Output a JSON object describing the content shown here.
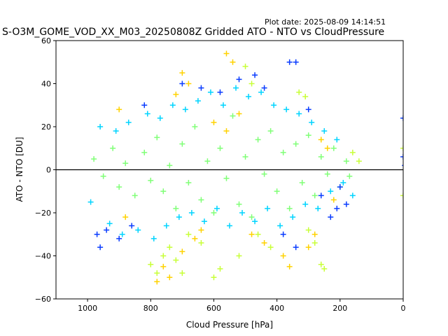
{
  "chart_data": {
    "type": "scatter",
    "title": "S-O3M_GOME_VOD_XX_M03_20250808Z Gridded ATO - NTO vs CloudPressure",
    "subtitle": "Plot date: 2025-08-09 14:14:51",
    "xlabel": "Cloud Pressure [hPa]",
    "ylabel": "ATO - NTO [DU]",
    "xlim": [
      1100,
      0
    ],
    "ylim": [
      -60,
      60
    ],
    "x_ticks": [
      1000,
      800,
      600,
      400,
      200,
      0
    ],
    "y_ticks": [
      60,
      40,
      20,
      0,
      -20,
      -40,
      -60
    ],
    "x_tick_labels": [
      "1000",
      "800",
      "600",
      "400",
      "200",
      "0"
    ],
    "y_tick_labels": [
      "60",
      "40",
      "20",
      "0",
      "−20",
      "−40",
      "−60"
    ],
    "reference_line_y": 0,
    "marker": "plus",
    "colormap": "jet",
    "colors": {
      "line": "#000000",
      "axes": "#000000",
      "background": "#ffffff"
    },
    "series": [
      {
        "color": "#80ff77",
        "values": [
          [
            980,
            5
          ],
          [
            950,
            -3
          ],
          [
            920,
            10
          ],
          [
            900,
            -8
          ],
          [
            880,
            3
          ],
          [
            850,
            -12
          ],
          [
            820,
            8
          ],
          [
            800,
            -5
          ],
          [
            780,
            15
          ],
          [
            760,
            -10
          ],
          [
            740,
            2
          ],
          [
            720,
            -18
          ],
          [
            700,
            12
          ],
          [
            680,
            -6
          ],
          [
            660,
            20
          ],
          [
            640,
            -14
          ],
          [
            620,
            4
          ],
          [
            600,
            -20
          ],
          [
            580,
            10
          ],
          [
            560,
            -4
          ],
          [
            540,
            25
          ],
          [
            520,
            -16
          ],
          [
            500,
            6
          ],
          [
            480,
            -22
          ],
          [
            460,
            14
          ],
          [
            440,
            -2
          ],
          [
            420,
            18
          ],
          [
            400,
            -10
          ],
          [
            380,
            8
          ],
          [
            360,
            -18
          ],
          [
            340,
            12
          ],
          [
            320,
            -6
          ],
          [
            300,
            16
          ],
          [
            280,
            -12
          ],
          [
            260,
            6
          ],
          [
            240,
            -2
          ],
          [
            220,
            10
          ],
          [
            200,
            -8
          ],
          [
            180,
            4
          ],
          [
            170,
            -3
          ]
        ]
      },
      {
        "color": "#00d4ff",
        "values": [
          [
            990,
            -15
          ],
          [
            960,
            20
          ],
          [
            930,
            -25
          ],
          [
            910,
            18
          ],
          [
            890,
            -30
          ],
          [
            870,
            22
          ],
          [
            840,
            -28
          ],
          [
            810,
            26
          ],
          [
            790,
            -32
          ],
          [
            770,
            24
          ],
          [
            750,
            -26
          ],
          [
            730,
            30
          ],
          [
            710,
            -22
          ],
          [
            690,
            28
          ],
          [
            670,
            -20
          ],
          [
            650,
            32
          ],
          [
            630,
            -24
          ],
          [
            610,
            36
          ],
          [
            590,
            -18
          ],
          [
            570,
            30
          ],
          [
            550,
            -26
          ],
          [
            530,
            38
          ],
          [
            510,
            -20
          ],
          [
            490,
            34
          ],
          [
            470,
            -24
          ],
          [
            450,
            36
          ],
          [
            430,
            -18
          ],
          [
            410,
            30
          ],
          [
            390,
            -26
          ],
          [
            370,
            28
          ],
          [
            350,
            -22
          ],
          [
            330,
            26
          ],
          [
            310,
            -16
          ],
          [
            290,
            22
          ],
          [
            270,
            -18
          ],
          [
            250,
            18
          ],
          [
            230,
            -10
          ],
          [
            210,
            14
          ],
          [
            190,
            -6
          ],
          [
            160,
            -12
          ]
        ]
      },
      {
        "color": "#ffd200",
        "values": [
          [
            760,
            -45
          ],
          [
            740,
            -50
          ],
          [
            780,
            -52
          ],
          [
            700,
            -38
          ],
          [
            720,
            35
          ],
          [
            700,
            45
          ],
          [
            680,
            40
          ],
          [
            600,
            22
          ],
          [
            560,
            18
          ],
          [
            520,
            26
          ],
          [
            480,
            -30
          ],
          [
            440,
            -34
          ],
          [
            380,
            -40
          ],
          [
            360,
            -45
          ],
          [
            300,
            -36
          ],
          [
            280,
            -30
          ],
          [
            260,
            14
          ],
          [
            240,
            10
          ],
          [
            220,
            -14
          ],
          [
            640,
            -28
          ],
          [
            660,
            -32
          ],
          [
            880,
            -22
          ],
          [
            900,
            28
          ],
          [
            560,
            54
          ],
          [
            540,
            50
          ]
        ]
      },
      {
        "color": "#0a3cff",
        "values": [
          [
            970,
            -30
          ],
          [
            960,
            -36
          ],
          [
            940,
            -28
          ],
          [
            900,
            -32
          ],
          [
            860,
            -26
          ],
          [
            820,
            30
          ],
          [
            700,
            40
          ],
          [
            640,
            38
          ],
          [
            580,
            36
          ],
          [
            520,
            42
          ],
          [
            470,
            44
          ],
          [
            440,
            38
          ],
          [
            360,
            50
          ],
          [
            340,
            50
          ],
          [
            300,
            28
          ],
          [
            260,
            -12
          ],
          [
            230,
            -22
          ],
          [
            210,
            -18
          ],
          [
            200,
            -8
          ],
          [
            180,
            -16
          ],
          [
            0,
            24
          ],
          [
            0,
            6
          ],
          [
            -5,
            2
          ],
          [
            340,
            -36
          ],
          [
            380,
            -30
          ]
        ]
      },
      {
        "color": "#c8ff38",
        "values": [
          [
            800,
            -44
          ],
          [
            780,
            -48
          ],
          [
            760,
            -40
          ],
          [
            740,
            -36
          ],
          [
            720,
            -42
          ],
          [
            680,
            -30
          ],
          [
            640,
            -34
          ],
          [
            600,
            -50
          ],
          [
            580,
            -46
          ],
          [
            520,
            -40
          ],
          [
            460,
            -30
          ],
          [
            420,
            -36
          ],
          [
            300,
            -28
          ],
          [
            280,
            -34
          ],
          [
            260,
            -44
          ],
          [
            250,
            -46
          ],
          [
            330,
            36
          ],
          [
            310,
            34
          ],
          [
            500,
            48
          ],
          [
            480,
            40
          ],
          [
            0,
            -12
          ],
          [
            0,
            10
          ],
          [
            140,
            4
          ],
          [
            160,
            8
          ],
          [
            700,
            -48
          ]
        ]
      }
    ]
  }
}
